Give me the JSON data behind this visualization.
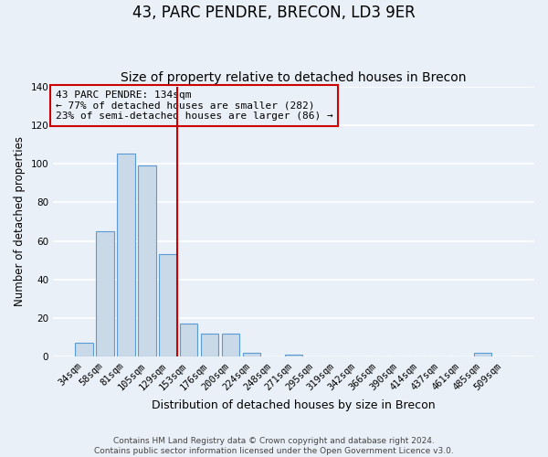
{
  "title": "43, PARC PENDRE, BRECON, LD3 9ER",
  "subtitle": "Size of property relative to detached houses in Brecon",
  "xlabel": "Distribution of detached houses by size in Brecon",
  "ylabel": "Number of detached properties",
  "categories": [
    "34sqm",
    "58sqm",
    "81sqm",
    "105sqm",
    "129sqm",
    "153sqm",
    "176sqm",
    "200sqm",
    "224sqm",
    "248sqm",
    "271sqm",
    "295sqm",
    "319sqm",
    "342sqm",
    "366sqm",
    "390sqm",
    "414sqm",
    "437sqm",
    "461sqm",
    "485sqm",
    "509sqm"
  ],
  "values": [
    7,
    65,
    105,
    99,
    53,
    17,
    12,
    12,
    2,
    0,
    1,
    0,
    0,
    0,
    0,
    0,
    0,
    0,
    0,
    2,
    0
  ],
  "bar_color": "#c9d9e8",
  "bar_edgecolor": "#5b9bd5",
  "vline_bin_index": 4,
  "vline_color": "#cc0000",
  "ylim": [
    0,
    140
  ],
  "yticks": [
    0,
    20,
    40,
    60,
    80,
    100,
    120,
    140
  ],
  "annotation_text": "43 PARC PENDRE: 134sqm\n← 77% of detached houses are smaller (282)\n23% of semi-detached houses are larger (86) →",
  "annotation_box_color": "#cc0000",
  "footer_line1": "Contains HM Land Registry data © Crown copyright and database right 2024.",
  "footer_line2": "Contains public sector information licensed under the Open Government Licence v3.0.",
  "background_color": "#eaf0f7",
  "grid_color": "#ffffff",
  "title_fontsize": 12,
  "subtitle_fontsize": 10,
  "ylabel_fontsize": 8.5,
  "xlabel_fontsize": 9,
  "tick_fontsize": 7.5,
  "annotation_fontsize": 8,
  "footer_fontsize": 6.5
}
